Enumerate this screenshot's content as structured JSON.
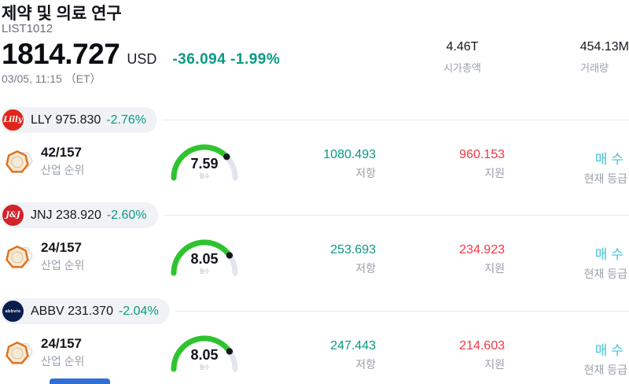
{
  "header": {
    "title": "제약 및 의료 연구",
    "list_id": "LIST1012",
    "price": "1814.727",
    "currency": "USD",
    "change": "-36.094 -1.99%",
    "datetime": "03/05, 11:15 （ET）",
    "stats": [
      {
        "value": "4.46T",
        "label": "시가총액"
      },
      {
        "value": "454.13M",
        "label": "거래량"
      }
    ]
  },
  "colors": {
    "accent_teal": "#0a9a85",
    "negative_red": "#f23645",
    "rating_cyan": "#45c1d3",
    "gauge_green": "#2fc42f",
    "gauge_track": "#e3e5ee",
    "partial_blue": "#2f6fd6"
  },
  "rows": [
    {
      "ticker": "LLY",
      "name_price": "LLY 975.830",
      "change": "-2.76%",
      "logo_text": "Lilly",
      "logo_bg": "#e1251b",
      "rank": "42/157",
      "rank_label": "산업 순위",
      "score": 7.59,
      "score_display": "7.59",
      "score_label": "점수",
      "resistance": "1080.493",
      "resistance_label": "저항",
      "support": "960.153",
      "support_label": "지원",
      "rating": "매수",
      "rating_label": "현재 등급"
    },
    {
      "ticker": "JNJ",
      "name_price": "JNJ 238.920",
      "change": "-2.60%",
      "logo_text": "J&J",
      "logo_bg": "#d3222a",
      "rank": "24/157",
      "rank_label": "산업 순위",
      "score": 8.05,
      "score_display": "8.05",
      "score_label": "점수",
      "resistance": "253.693",
      "resistance_label": "저항",
      "support": "234.923",
      "support_label": "지원",
      "rating": "매수",
      "rating_label": "현재 등급"
    },
    {
      "ticker": "ABBV",
      "name_price": "ABBV 231.370",
      "change": "-2.04%",
      "logo_text": "abbvie",
      "logo_bg": "#0a1e4e",
      "rank": "24/157",
      "rank_label": "산업 순위",
      "score": 8.05,
      "score_display": "8.05",
      "score_label": "점수",
      "resistance": "247.443",
      "resistance_label": "저항",
      "support": "214.603",
      "support_label": "지원",
      "rating": "매수",
      "rating_label": "현재 등급"
    }
  ]
}
